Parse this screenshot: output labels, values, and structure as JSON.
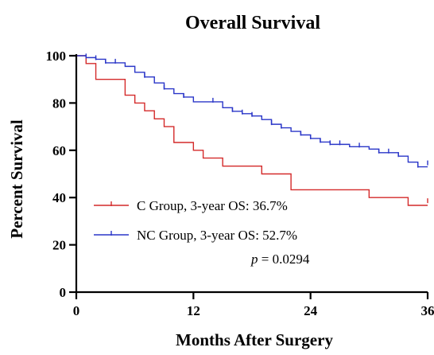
{
  "chart_data": {
    "type": "line",
    "title": "Overall Survival",
    "xlabel": "Months After Surgery",
    "ylabel": "Percent Survival",
    "xlim": [
      0,
      36
    ],
    "ylim": [
      0,
      100
    ],
    "xticks": [
      0,
      12,
      24,
      36
    ],
    "yticks": [
      0,
      20,
      40,
      60,
      80,
      100
    ],
    "grid": false,
    "legend_position": "bottom-left",
    "step": true,
    "series": [
      {
        "name": "C Group, 3-year OS: 36.7%",
        "color": "#d42a2a",
        "x": [
          0,
          1,
          2,
          5,
          6,
          7,
          8,
          9,
          10,
          12,
          13,
          15,
          19,
          22,
          30,
          34,
          36
        ],
        "y": [
          100,
          96.7,
          90,
          83.3,
          80,
          76.7,
          73.3,
          70,
          63.3,
          60,
          56.7,
          53.3,
          50,
          43.3,
          40,
          36.7,
          36.7
        ],
        "censor_x": [
          36
        ],
        "censor_y": [
          38
        ]
      },
      {
        "name": "NC Group, 3-year OS: 52.7%",
        "color": "#2a36c8",
        "x": [
          0,
          1,
          2,
          3,
          5,
          6,
          7,
          8,
          9,
          10,
          11,
          12,
          15,
          16,
          17,
          18,
          19,
          20,
          21,
          22,
          23,
          24,
          25,
          26,
          28,
          30,
          31,
          33,
          34,
          35,
          36
        ],
        "y": [
          100,
          99.2,
          98.5,
          97,
          95.5,
          93,
          91,
          88.5,
          86,
          84,
          82.5,
          80.5,
          78,
          76.5,
          75.5,
          74.5,
          73,
          71,
          69.5,
          68,
          66.5,
          65,
          63.5,
          62.5,
          61.5,
          60.5,
          59,
          57.5,
          55,
          53,
          53
        ],
        "censor_x": [
          1,
          2,
          3,
          4,
          7,
          9,
          11,
          14,
          16,
          17,
          18,
          20,
          21,
          23,
          24,
          25,
          26,
          27,
          29,
          31,
          32,
          33,
          35,
          36
        ],
        "censor_y": [
          99.2,
          98.5,
          97,
          97,
          91,
          86,
          82.5,
          80.5,
          76.5,
          75.5,
          74.5,
          71,
          69.5,
          66.5,
          65,
          63.5,
          62.5,
          62.5,
          61.5,
          59,
          59,
          57.5,
          53,
          54
        ]
      }
    ],
    "annotation": {
      "prefix": "p",
      "value": " = 0.0294"
    }
  }
}
